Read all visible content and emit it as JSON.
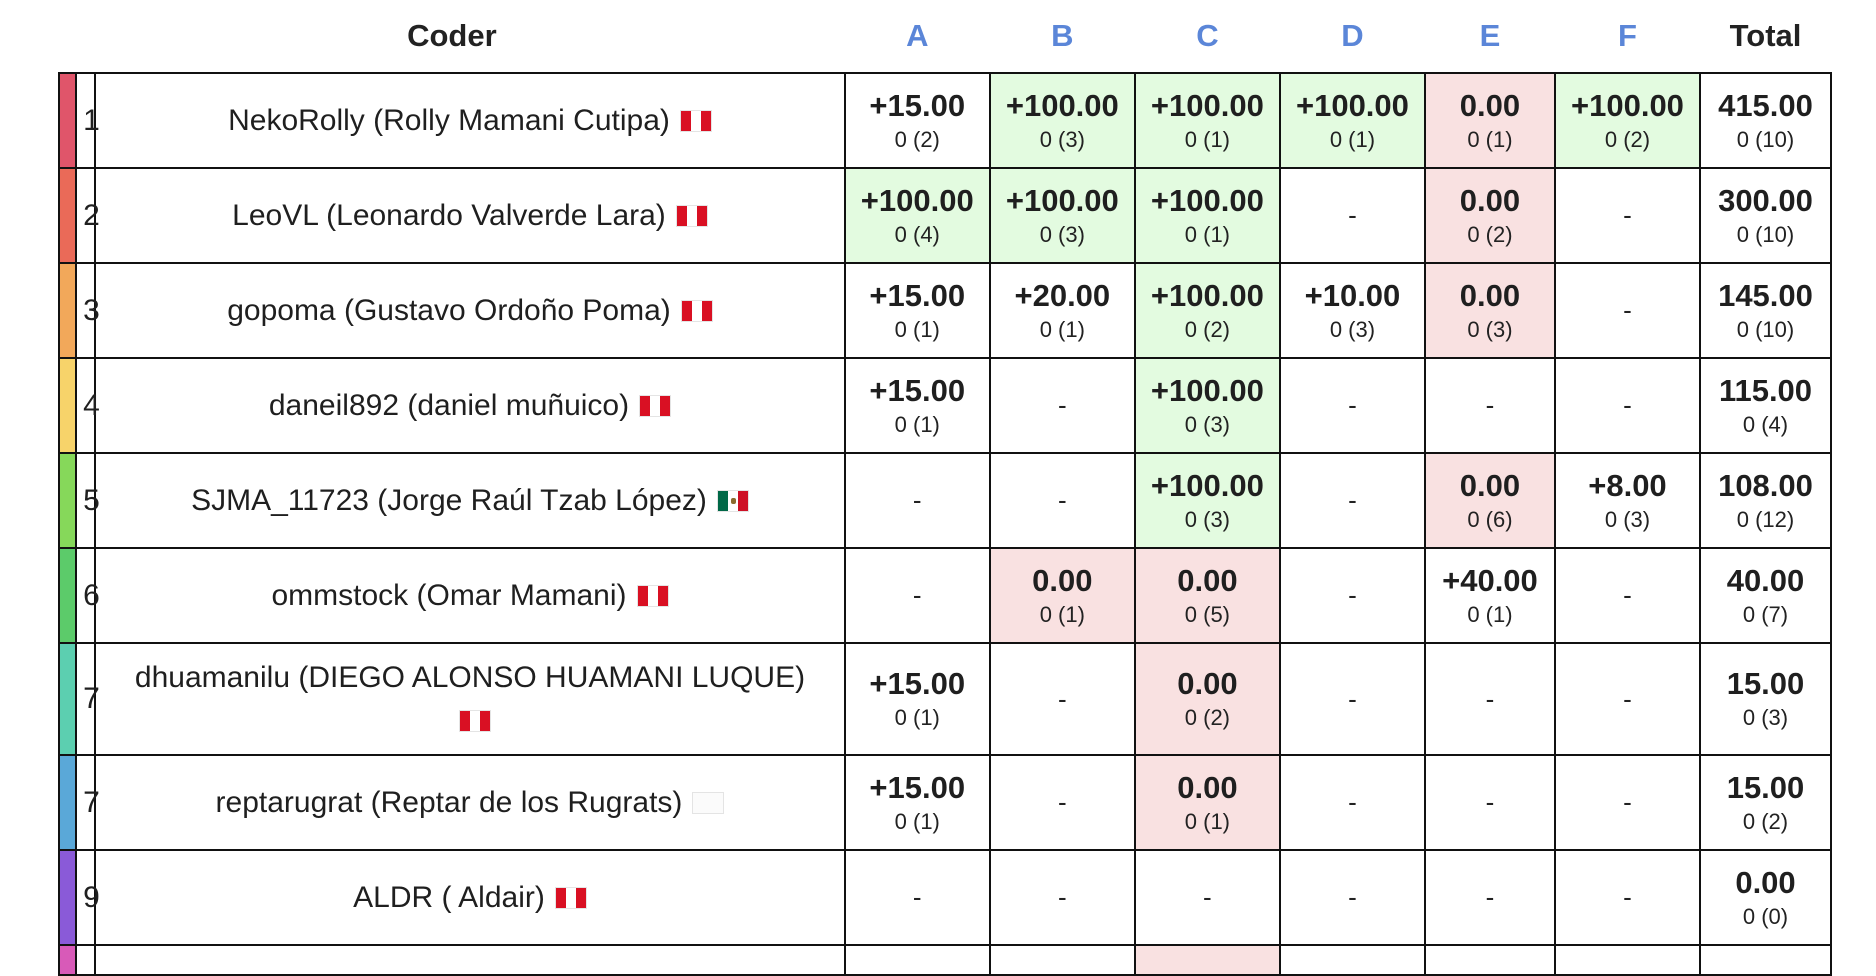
{
  "header": {
    "coder": "Coder",
    "total": "Total",
    "problems": [
      "A",
      "B",
      "C",
      "D",
      "E",
      "F"
    ]
  },
  "colors": {
    "accepted": "#e3fbe0",
    "rejected": "#f9e1e1",
    "problem_header": "#5b86d8"
  },
  "rows": [
    {
      "rank": "1",
      "bar": "#e0556a",
      "coder": "NekoRolly (Rolly Mamani Cutipa)",
      "flag": "pe",
      "cells": [
        {
          "score": "+15.00",
          "sub": "0 (2)",
          "status": "none"
        },
        {
          "score": "+100.00",
          "sub": "0 (3)",
          "status": "ok"
        },
        {
          "score": "+100.00",
          "sub": "0 (1)",
          "status": "ok"
        },
        {
          "score": "+100.00",
          "sub": "0 (1)",
          "status": "ok"
        },
        {
          "score": "0.00",
          "sub": "0 (1)",
          "status": "bad"
        },
        {
          "score": "+100.00",
          "sub": "0 (2)",
          "status": "ok"
        }
      ],
      "total": {
        "score": "415.00",
        "sub": "0 (10)"
      }
    },
    {
      "rank": "2",
      "bar": "#ea6a58",
      "coder": "LeoVL (Leonardo Valverde Lara)",
      "flag": "pe",
      "cells": [
        {
          "score": "+100.00",
          "sub": "0 (4)",
          "status": "ok"
        },
        {
          "score": "+100.00",
          "sub": "0 (3)",
          "status": "ok"
        },
        {
          "score": "+100.00",
          "sub": "0 (1)",
          "status": "ok"
        },
        {
          "dash": "-"
        },
        {
          "score": "0.00",
          "sub": "0 (2)",
          "status": "bad"
        },
        {
          "dash": "-"
        }
      ],
      "total": {
        "score": "300.00",
        "sub": "0 (10)"
      }
    },
    {
      "rank": "3",
      "bar": "#f2a85a",
      "coder": "gopoma (Gustavo Ordoño Poma)",
      "flag": "pe",
      "cells": [
        {
          "score": "+15.00",
          "sub": "0 (1)",
          "status": "none"
        },
        {
          "score": "+20.00",
          "sub": "0 (1)",
          "status": "none"
        },
        {
          "score": "+100.00",
          "sub": "0 (2)",
          "status": "ok"
        },
        {
          "score": "+10.00",
          "sub": "0 (3)",
          "status": "none"
        },
        {
          "score": "0.00",
          "sub": "0 (3)",
          "status": "bad"
        },
        {
          "dash": "-"
        }
      ],
      "total": {
        "score": "145.00",
        "sub": "0 (10)"
      }
    },
    {
      "rank": "4",
      "bar": "#f7d36a",
      "coder": "daneil892 (daniel muñuico)",
      "flag": "pe",
      "cells": [
        {
          "score": "+15.00",
          "sub": "0 (1)",
          "status": "none"
        },
        {
          "dash": "-"
        },
        {
          "score": "+100.00",
          "sub": "0 (3)",
          "status": "ok"
        },
        {
          "dash": "-"
        },
        {
          "dash": "-"
        },
        {
          "dash": "-"
        }
      ],
      "total": {
        "score": "115.00",
        "sub": "0 (4)"
      }
    },
    {
      "rank": "5",
      "bar": "#86d85a",
      "coder": "SJMA_11723 (Jorge Raúl Tzab López)",
      "flag": "mx",
      "cells": [
        {
          "dash": "-"
        },
        {
          "dash": "-"
        },
        {
          "score": "+100.00",
          "sub": "0 (3)",
          "status": "ok"
        },
        {
          "dash": "-"
        },
        {
          "score": "0.00",
          "sub": "0 (6)",
          "status": "bad"
        },
        {
          "score": "+8.00",
          "sub": "0 (3)",
          "status": "none"
        }
      ],
      "total": {
        "score": "108.00",
        "sub": "0 (12)"
      }
    },
    {
      "rank": "6",
      "bar": "#5ccb6a",
      "coder": "ommstock (Omar Mamani)",
      "flag": "pe",
      "cells": [
        {
          "dash": "-"
        },
        {
          "score": "0.00",
          "sub": "0 (1)",
          "status": "bad"
        },
        {
          "score": "0.00",
          "sub": "0 (5)",
          "status": "bad"
        },
        {
          "dash": "-"
        },
        {
          "score": "+40.00",
          "sub": "0 (1)",
          "status": "none"
        },
        {
          "dash": "-"
        }
      ],
      "total": {
        "score": "40.00",
        "sub": "0 (7)"
      }
    },
    {
      "rank": "7",
      "bar": "#5ccfb0",
      "coder": "dhuamanilu (DIEGO ALONSO HUAMANI LUQUE)",
      "flag": "pe",
      "wrap": true,
      "cells": [
        {
          "score": "+15.00",
          "sub": "0 (1)",
          "status": "none"
        },
        {
          "dash": "-"
        },
        {
          "score": "0.00",
          "sub": "0 (2)",
          "status": "bad"
        },
        {
          "dash": "-"
        },
        {
          "dash": "-"
        },
        {
          "dash": "-"
        }
      ],
      "total": {
        "score": "15.00",
        "sub": "0 (3)"
      }
    },
    {
      "rank": "7",
      "bar": "#5aa8d8",
      "coder": "reptarugrat (Reptar de los Rugrats)",
      "flag": "blank",
      "cells": [
        {
          "score": "+15.00",
          "sub": "0 (1)",
          "status": "none"
        },
        {
          "dash": "-"
        },
        {
          "score": "0.00",
          "sub": "0 (1)",
          "status": "bad"
        },
        {
          "dash": "-"
        },
        {
          "dash": "-"
        },
        {
          "dash": "-"
        }
      ],
      "total": {
        "score": "15.00",
        "sub": "0 (2)"
      }
    },
    {
      "rank": "9",
      "bar": "#8a5ad8",
      "coder": "ALDR ( Aldair)",
      "flag": "pe",
      "cells": [
        {
          "dash": "-"
        },
        {
          "dash": "-"
        },
        {
          "dash": "-"
        },
        {
          "dash": "-"
        },
        {
          "dash": "-"
        },
        {
          "dash": "-"
        }
      ],
      "total": {
        "score": "0.00",
        "sub": "0 (0)"
      }
    }
  ],
  "partial_row": {
    "bar": "#d85ab8",
    "c_status": "bad"
  }
}
